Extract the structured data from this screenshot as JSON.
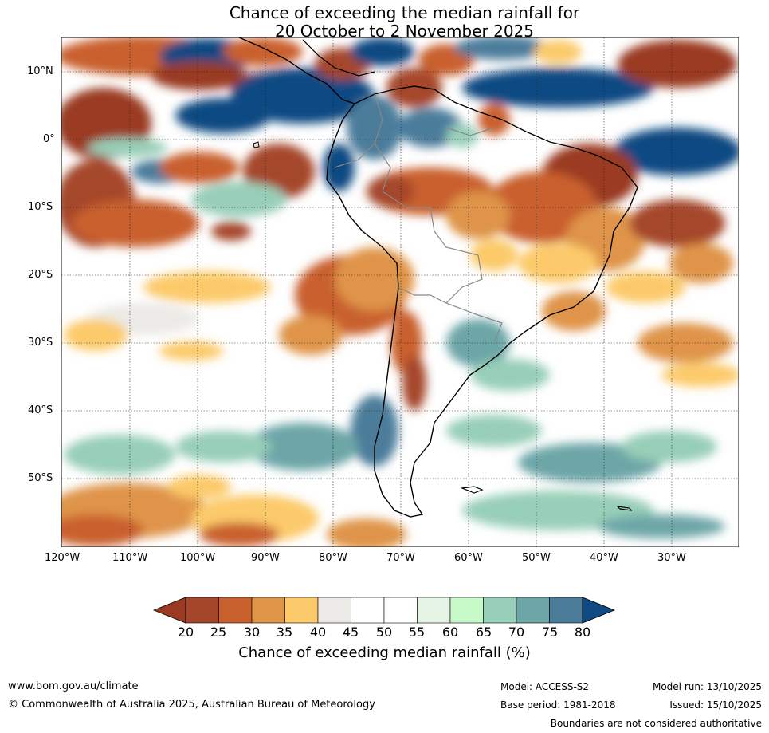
{
  "title_line1": "Chance of exceeding the median rainfall for",
  "title_line2": "20 October to 2 November 2025",
  "lat_labels": [
    "10°N",
    "0°",
    "10°S",
    "20°S",
    "30°S",
    "40°S",
    "50°S"
  ],
  "lon_labels": [
    "120°W",
    "110°W",
    "100°W",
    "90°W",
    "80°W",
    "70°W",
    "60°W",
    "50°W",
    "40°W",
    "30°W"
  ],
  "colorbar": {
    "ticks": [
      "20",
      "25",
      "30",
      "35",
      "40",
      "45",
      "50",
      "55",
      "60",
      "65",
      "70",
      "75",
      "80"
    ],
    "colors": [
      "#a5462a",
      "#c9612e",
      "#df9448",
      "#fcca6a",
      "#eceae6",
      "#ffffff",
      "#ffffff",
      "#e6f4e6",
      "#c8f9c8",
      "#98cfb8",
      "#6da6a7",
      "#4b7d9b"
    ],
    "under_color": "#9a3a22",
    "over_color": "#0f4a82",
    "label": "Chance of exceeding median rainfall (%)"
  },
  "footer": {
    "url": "www.bom.gov.au/climate",
    "copyright": "© Commonwealth of Australia 2025, Australian Bureau of Meteorology",
    "model": "Model: ACCESS-S2",
    "base_period": "Base period: 1981-2018",
    "model_run": "Model run: 13/10/2025",
    "issued": "Issued: 15/10/2025",
    "disclaimer": "Boundaries are not considered authoritative"
  }
}
